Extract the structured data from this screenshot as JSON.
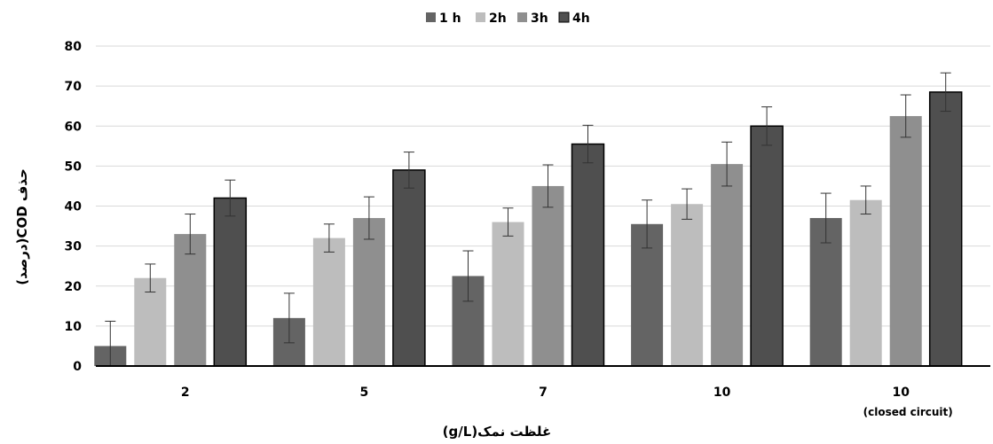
{
  "chart_data": {
    "type": "bar",
    "categories": [
      "2",
      "5",
      "7",
      "10",
      "10"
    ],
    "category_sublabels": [
      "",
      "",
      "",
      "",
      "(closed circuit)"
    ],
    "series": [
      {
        "name": "1 h",
        "color": "#646464",
        "values": [
          5,
          12,
          22.5,
          35.5,
          37
        ],
        "errors": [
          6.2,
          6.2,
          6.3,
          6.0,
          6.2
        ]
      },
      {
        "name": "2h",
        "color": "#bdbdbd",
        "values": [
          22,
          32,
          36,
          40.5,
          41.5
        ],
        "errors": [
          3.5,
          3.5,
          3.5,
          3.8,
          3.5
        ]
      },
      {
        "name": "3h",
        "color": "#8f8f8f",
        "values": [
          33,
          37,
          45,
          50.5,
          62.5
        ],
        "errors": [
          5.0,
          5.3,
          5.3,
          5.5,
          5.3
        ]
      },
      {
        "name": "4h",
        "color": "#4f4f4f",
        "values": [
          42,
          49,
          55.5,
          60,
          68.5
        ],
        "errors": [
          4.5,
          4.5,
          4.7,
          4.8,
          4.8
        ]
      }
    ],
    "ylim": [
      0,
      80
    ],
    "yticks": [
      0,
      10,
      20,
      30,
      40,
      50,
      60,
      70,
      80
    ],
    "xlabel": "غلظت نمک(g/L)",
    "ylabel": "حذف COD(درصد)",
    "legend_position": "top-center",
    "grid": true
  }
}
